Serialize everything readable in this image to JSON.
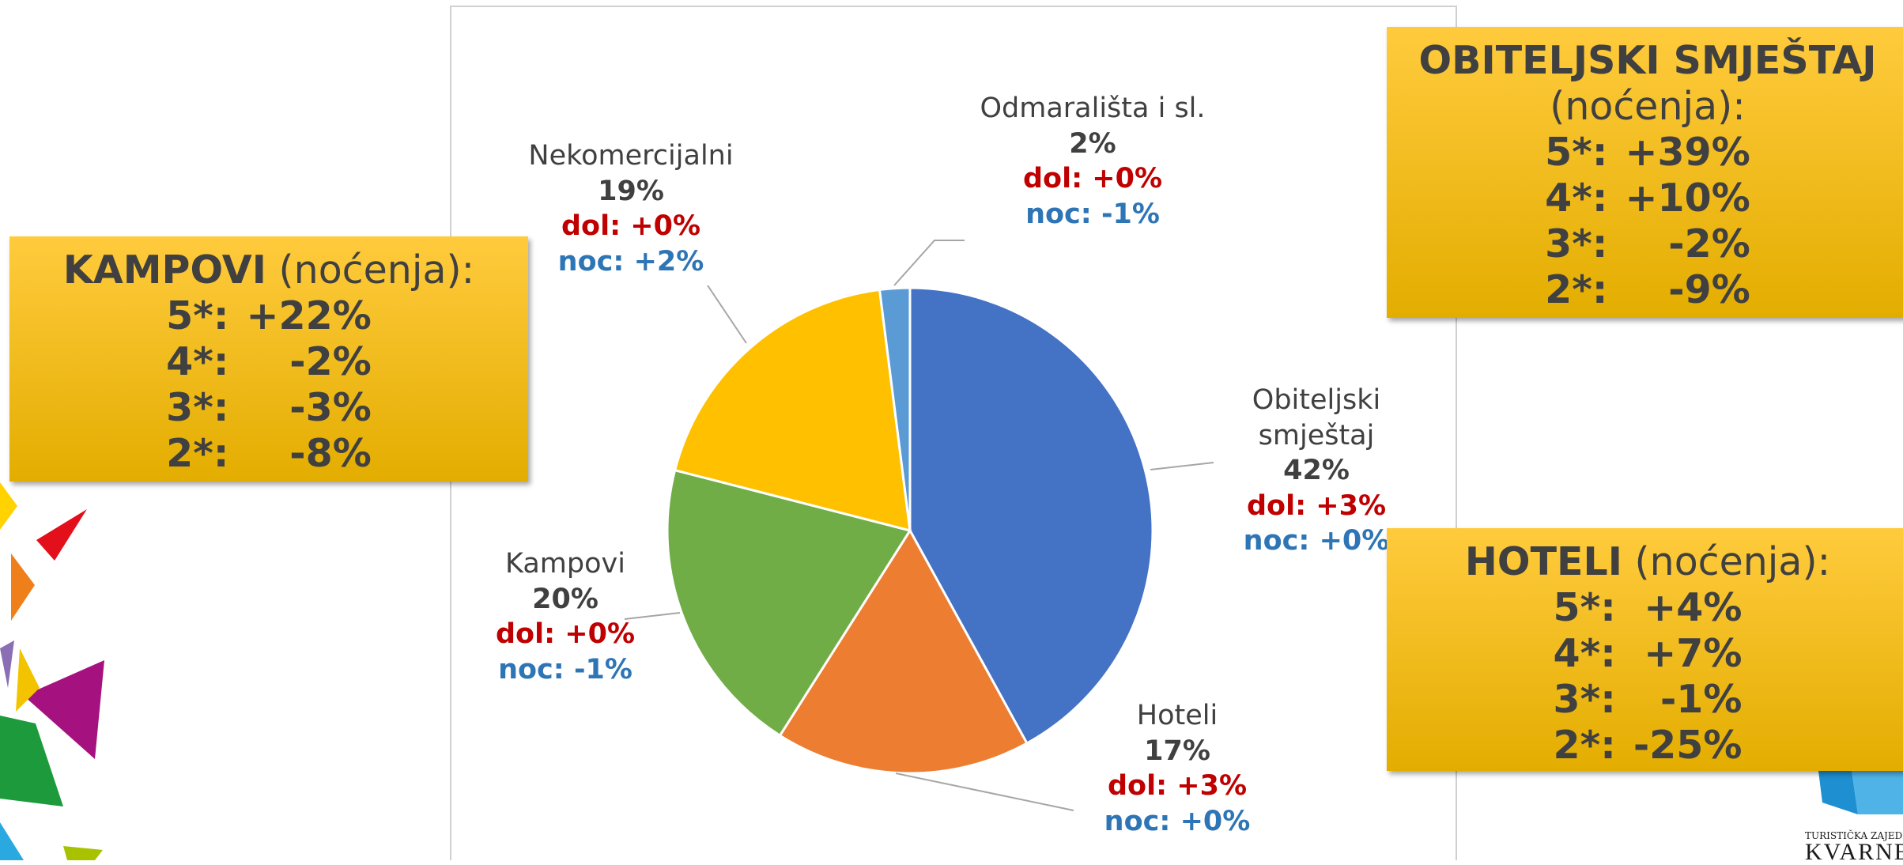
{
  "chart_data": {
    "type": "pie",
    "categories": [
      "Obiteljski smještaj",
      "Hoteli",
      "Kampovi",
      "Nekomercijalni",
      "Odmarališta i sl."
    ],
    "values": [
      42,
      17,
      20,
      19,
      2
    ],
    "value_labels": [
      "42%",
      "17%",
      "20%",
      "19%",
      "2%"
    ],
    "colors": [
      "#4472c4",
      "#ed7d31",
      "#70ad47",
      "#ffc000",
      "#5b9bd5"
    ],
    "dol_labels": [
      "dol: +3%",
      "dol: +3%",
      "dol: +0%",
      "dol: +0%",
      "dol: +0%"
    ],
    "noc_labels": [
      "noc: +0%",
      "noc: +0%",
      "noc: -1%",
      "noc: +2%",
      "noc: -1%"
    ]
  },
  "boxes": [
    {
      "title": "KAMPOVI",
      "subtitle": "(noćenja):",
      "rows": [
        [
          "5*:",
          "+22%"
        ],
        [
          "4*:",
          "-2%"
        ],
        [
          "3*:",
          "-3%"
        ],
        [
          "2*:",
          "-8%"
        ]
      ]
    },
    {
      "title": "OBITELJSKI SMJEŠTAJ",
      "subtitle": "(noćenja):",
      "rows": [
        [
          "5*:",
          "+39%"
        ],
        [
          "4*:",
          "+10%"
        ],
        [
          "3*:",
          "-2%"
        ],
        [
          "2*:",
          "-9%"
        ]
      ]
    },
    {
      "title": "HOTELI",
      "subtitle": "(noćenja):",
      "rows": [
        [
          "5*:",
          "+4%"
        ],
        [
          "4*:",
          "+7%"
        ],
        [
          "3*:",
          "-1%"
        ],
        [
          "2*:",
          "-25%"
        ]
      ]
    }
  ],
  "logo": {
    "top": "TURISTIČKA ZAJEDN",
    "name": "KVARNE"
  }
}
